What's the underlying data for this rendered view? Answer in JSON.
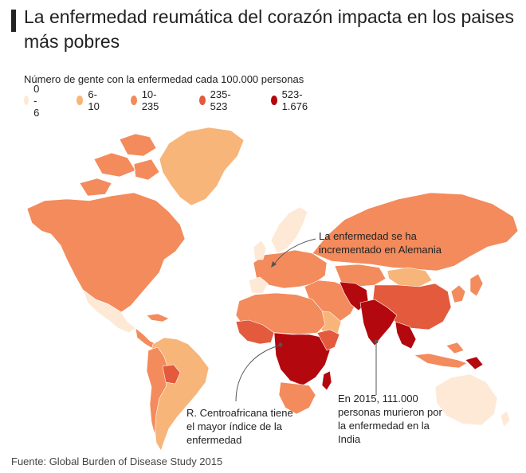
{
  "title": "La enfermedad reumática del corazón impacta en los paises más pobres",
  "legend": {
    "title": "Número de gente con la enfermedad cada 100.000 personas",
    "items": [
      {
        "label": "0 - 6",
        "color": "#fde9d6"
      },
      {
        "label": "6-10",
        "color": "#f7b57a"
      },
      {
        "label": "10-235",
        "color": "#f38b5c"
      },
      {
        "label": "235-523",
        "color": "#e45a3d"
      },
      {
        "label": "523-1.676",
        "color": "#b3080d"
      }
    ]
  },
  "annotations": {
    "germany": "La enfermedad se ha incrementado en Alemania",
    "car": "R. Centroafricana tiene el mayor índice de la enfermedad",
    "india": "En 2015, 111.000 personas murieron por la enfermedad en la India"
  },
  "source": "Fuente: Global Burden of Disease Study 2015",
  "colors": {
    "ocean": "#ffffff",
    "border": "#ffffff",
    "leader_line": "#555555"
  }
}
